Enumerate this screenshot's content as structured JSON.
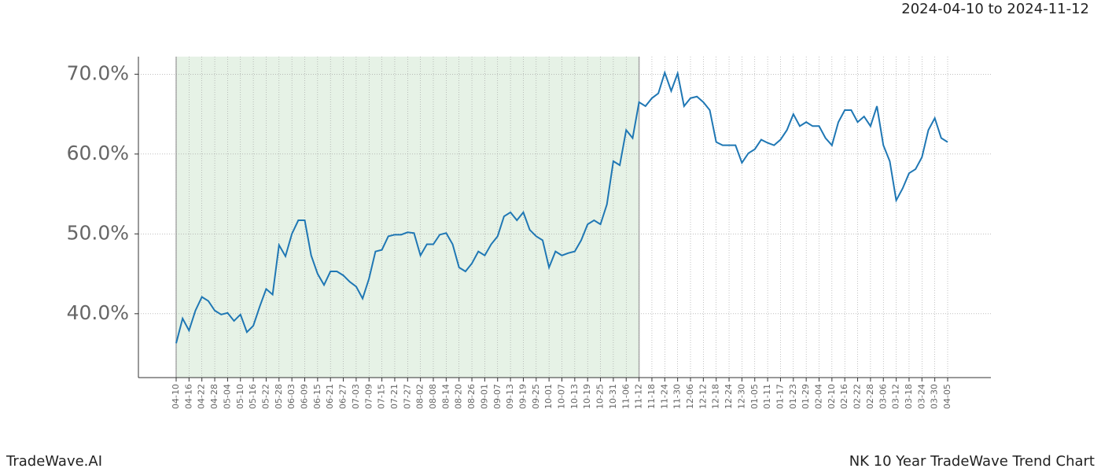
{
  "header": {
    "range": "2024-04-10 to 2024-11-12"
  },
  "footer": {
    "brand": "TradeWave.AI",
    "caption": "NK 10 Year TradeWave Trend Chart"
  },
  "chart_data": {
    "type": "line",
    "color": "#1f77b4",
    "grid": true,
    "shade": [
      "04-10",
      "11-12"
    ],
    "shade_color": "#e6f2e6",
    "categories": [
      "04-10",
      null,
      "04-16",
      null,
      "04-22",
      null,
      "04-28",
      null,
      "05-04",
      null,
      "05-10",
      null,
      "05-16",
      null,
      "05-22",
      null,
      "05-28",
      null,
      "06-03",
      null,
      "06-09",
      null,
      "06-15",
      null,
      "06-21",
      null,
      "06-27",
      null,
      "07-03",
      null,
      "07-09",
      null,
      "07-15",
      null,
      "07-21",
      null,
      "07-27",
      null,
      "08-02",
      null,
      "08-08",
      null,
      "08-14",
      null,
      "08-20",
      null,
      "08-26",
      null,
      "09-01",
      null,
      "09-07",
      null,
      "09-13",
      null,
      "09-19",
      null,
      "09-25",
      null,
      "10-01",
      null,
      "10-07",
      null,
      "10-13",
      null,
      "10-19",
      null,
      "10-25",
      null,
      "10-31",
      null,
      "11-06",
      null,
      "11-12",
      null,
      "11-18",
      null,
      "11-24",
      null,
      "11-30",
      null,
      "12-06",
      null,
      "12-12",
      null,
      "12-18",
      null,
      "12-24",
      null,
      "12-30",
      null,
      "01-05",
      null,
      "01-11",
      null,
      "01-17",
      null,
      "01-23",
      null,
      "01-29",
      null,
      "02-04",
      null,
      "02-10",
      null,
      "02-16",
      null,
      "02-22",
      null,
      "02-28",
      null,
      "03-06",
      null,
      "03-12",
      null,
      "03-18",
      null,
      "03-24",
      null,
      "03-30",
      null,
      "04-05"
    ],
    "values": [
      36.3,
      39.4,
      37.9,
      40.4,
      42.1,
      41.6,
      40.4,
      39.9,
      40.1,
      39.1,
      39.9,
      37.7,
      38.5,
      40.9,
      43.1,
      42.4,
      48.6,
      47.2,
      50.0,
      51.7,
      51.7,
      47.3,
      45.0,
      43.6,
      45.3,
      45.3,
      44.8,
      44.0,
      43.4,
      41.9,
      44.4,
      47.8,
      48.0,
      49.7,
      49.9,
      49.9,
      50.2,
      50.1,
      47.3,
      48.7,
      48.7,
      49.9,
      50.1,
      48.7,
      45.8,
      45.3,
      46.3,
      47.8,
      47.3,
      48.7,
      49.7,
      52.2,
      52.7,
      51.7,
      52.7,
      50.5,
      49.7,
      49.2,
      45.8,
      47.8,
      47.3,
      47.6,
      47.8,
      49.2,
      51.2,
      51.7,
      51.2,
      53.7,
      59.1,
      58.6,
      63.0,
      62.0,
      66.5,
      66.0,
      67.0,
      67.6,
      70.2,
      67.9,
      70.1,
      66.0,
      67.0,
      67.2,
      66.5,
      65.5,
      61.5,
      61.1,
      61.1,
      61.1,
      58.9,
      60.1,
      60.6,
      61.8,
      61.4,
      61.1,
      61.8,
      63.0,
      65.0,
      63.5,
      64.0,
      63.5,
      63.5,
      62.0,
      61.1,
      64.0,
      65.5,
      65.5,
      64.0,
      64.7,
      63.5,
      66.0,
      61.1,
      59.1,
      54.2,
      55.7,
      57.6,
      58.1,
      59.6,
      63.0,
      64.5,
      62.0,
      61.5
    ],
    "ylim": [
      32.0,
      72.2
    ],
    "yticks": [
      {
        "value": 40,
        "label": "40.0%"
      },
      {
        "value": 50,
        "label": "50.0%"
      },
      {
        "value": 60,
        "label": "60.0%"
      },
      {
        "value": 70,
        "label": "70.0%"
      }
    ]
  }
}
